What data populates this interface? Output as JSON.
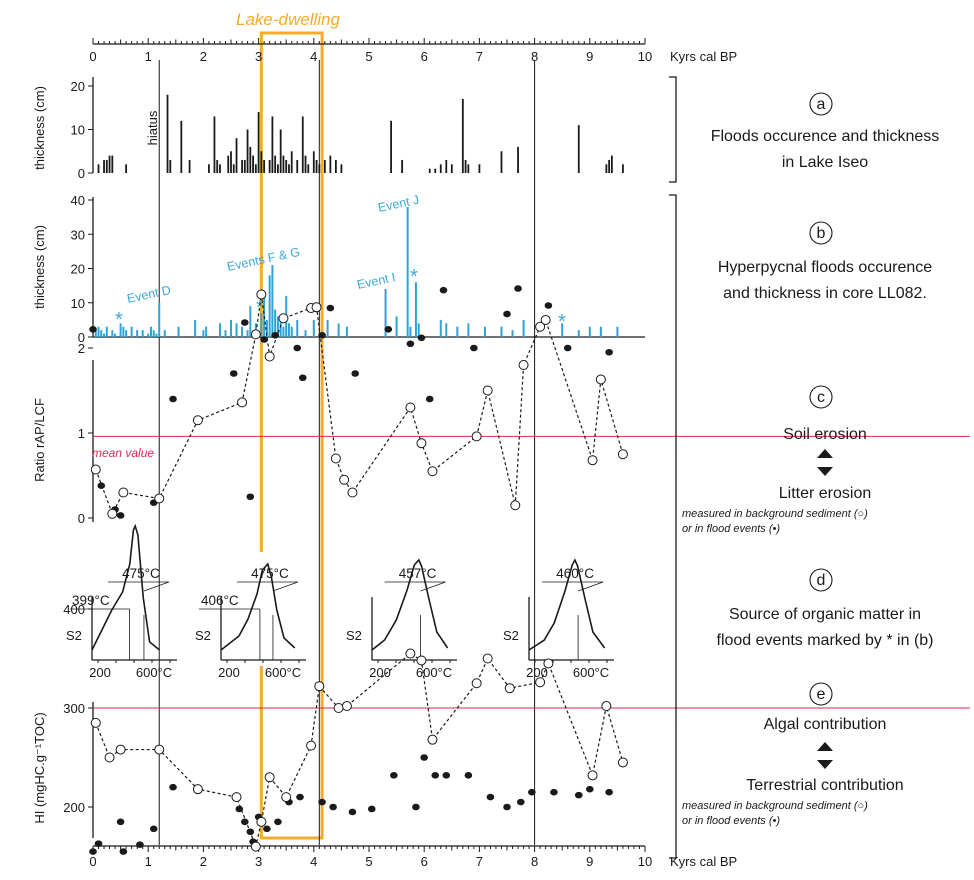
{
  "figure": {
    "lake_dwelling_label": "Lake-dwelling",
    "time_axis_unit": "Kyrs cal BP",
    "time_ticks": [
      0,
      1,
      2,
      3,
      4,
      5,
      6,
      7,
      8,
      9,
      10
    ],
    "lake_dwelling_range": [
      3.05,
      4.15
    ],
    "vertical_markers": [
      1.2,
      4.1,
      8.0
    ],
    "colors": {
      "lake_dwelling": "#f5ac2d",
      "hyperpycnal_bars": "#2fa3d5",
      "mean_line": "#d8294f",
      "text": "#1a1a1a"
    }
  },
  "panels": {
    "a": {
      "letter": "a",
      "title_line1": "Floods occurence and thickness",
      "title_line2": "in Lake Iseo",
      "ylabel": "thickness (cm)",
      "hiatus_label": "hiatus",
      "yticks": [
        "0",
        "10",
        "20"
      ]
    },
    "b": {
      "letter": "b",
      "title_line1": "Hyperpycnal floods occurence",
      "title_line2": "and thickness in core LL082.",
      "ylabel": "thickness (cm)",
      "yticks": [
        "0",
        "10",
        "20",
        "30",
        "40"
      ],
      "event_labels": [
        "Event D",
        "Events F & G",
        "Event I",
        "Event J"
      ],
      "asterisk": "*"
    },
    "c": {
      "letter": "c",
      "ylabel": "Ratio rAP/LCF",
      "yticks": [
        "0",
        "1",
        "2"
      ],
      "mean_label": "mean value",
      "upper_label": "Soil erosion",
      "lower_label": "Litter erosion",
      "note_line1": "measured in background sediment (○)",
      "note_line2": "or in flood events (•)"
    },
    "d": {
      "letter": "d",
      "title_line1": "Source of organic matter in",
      "title_line2": "flood events marked by * in (b)",
      "ylabel": "S2",
      "xtick_low": "200",
      "xtick_high": "600°C",
      "pyrograms": [
        {
          "peak_label": "475°C",
          "shoulder_label": "399°C"
        },
        {
          "peak_label": "475°C",
          "shoulder_label": "406°C"
        },
        {
          "peak_label": "457°C",
          "shoulder_label": ""
        },
        {
          "peak_label": "460°C",
          "shoulder_label": ""
        }
      ]
    },
    "e": {
      "letter": "e",
      "ylabel": "HI (mgHC.g⁻¹TOC)",
      "yticks": [
        "200",
        "300",
        "400"
      ],
      "upper_label": "Algal contribution",
      "lower_label": "Terrestrial contribution",
      "note_line1": "measured in background sediment (○)",
      "note_line2": "or in flood events (•)"
    }
  },
  "chart_data": [
    {
      "panel": "a",
      "type": "bar",
      "xlabel": "Kyrs cal BP",
      "ylabel": "thickness (cm)",
      "xlim": [
        0,
        10
      ],
      "ylim": [
        0,
        22
      ],
      "x": [
        0.1,
        0.2,
        0.25,
        0.3,
        0.35,
        0.6,
        1.35,
        1.4,
        1.6,
        1.75,
        2.1,
        2.2,
        2.25,
        2.3,
        2.45,
        2.5,
        2.55,
        2.6,
        2.7,
        2.75,
        2.8,
        2.85,
        2.9,
        2.95,
        3.0,
        3.05,
        3.1,
        3.2,
        3.25,
        3.3,
        3.35,
        3.4,
        3.45,
        3.5,
        3.55,
        3.6,
        3.7,
        3.8,
        3.85,
        3.9,
        4.0,
        4.05,
        4.1,
        4.2,
        4.3,
        4.4,
        4.5,
        5.4,
        5.6,
        6.1,
        6.2,
        6.3,
        6.4,
        6.5,
        6.7,
        6.75,
        6.8,
        7.0,
        7.4,
        7.7,
        8.8,
        9.3,
        9.35,
        9.4,
        9.6
      ],
      "values": [
        2,
        3,
        3,
        4,
        4,
        2,
        18,
        3,
        12,
        3,
        2,
        13,
        3,
        2,
        4,
        5,
        2,
        8,
        3,
        3,
        10,
        6,
        4,
        2,
        14,
        5,
        3,
        3,
        13,
        4,
        2,
        10,
        4,
        3,
        2,
        5,
        3,
        13,
        4,
        2,
        5,
        3,
        2,
        3,
        4,
        3,
        2,
        12,
        3,
        1,
        1,
        2,
        3,
        2,
        17,
        3,
        2,
        2,
        5,
        6,
        11,
        2,
        3,
        4,
        2
      ]
    },
    {
      "panel": "b",
      "type": "bar",
      "xlabel": "Kyrs cal BP",
      "ylabel": "thickness (cm)",
      "xlim": [
        0,
        10
      ],
      "ylim": [
        0,
        40
      ],
      "x": [
        0.05,
        0.1,
        0.15,
        0.2,
        0.25,
        0.35,
        0.4,
        0.5,
        0.55,
        0.6,
        0.7,
        0.8,
        0.9,
        1.0,
        1.05,
        1.1,
        1.15,
        1.2,
        1.3,
        1.55,
        1.85,
        2.0,
        2.05,
        2.3,
        2.4,
        2.5,
        2.6,
        2.7,
        2.8,
        2.85,
        2.95,
        3.05,
        3.1,
        3.15,
        3.2,
        3.25,
        3.3,
        3.35,
        3.4,
        3.45,
        3.5,
        3.55,
        3.6,
        3.7,
        3.85,
        4.0,
        4.25,
        4.45,
        4.6,
        5.3,
        5.5,
        5.7,
        5.75,
        5.85,
        5.9,
        6.3,
        6.4,
        6.6,
        6.8,
        7.1,
        7.4,
        7.6,
        7.8,
        8.5,
        8.8,
        9.0,
        9.2,
        9.5
      ],
      "values": [
        2,
        3,
        2,
        1,
        3,
        2,
        1,
        4,
        3,
        2,
        3,
        2,
        2,
        1,
        3,
        2,
        1,
        10,
        2,
        3,
        5,
        2,
        3,
        4,
        2,
        5,
        4,
        3,
        2,
        9,
        4,
        7,
        12,
        5,
        18,
        21,
        8,
        6,
        5,
        3,
        12,
        4,
        3,
        5,
        2,
        5,
        5,
        4,
        3,
        14,
        6,
        38,
        3,
        16,
        4,
        5,
        4,
        3,
        4,
        3,
        3,
        2,
        5,
        4,
        2,
        3,
        3,
        3
      ]
    },
    {
      "panel": "c",
      "type": "scatter",
      "ylabel": "Ratio rAP/LCF",
      "xlim": [
        0,
        10
      ],
      "ylim": [
        0,
        2.6
      ],
      "mean": 0.96,
      "series": [
        {
          "name": "background",
          "marker": "open",
          "connected": true,
          "x": [
            0.05,
            0.35,
            0.55,
            1.2,
            1.9,
            2.7,
            2.95,
            3.05,
            3.2,
            3.45,
            3.95,
            4.05,
            4.4,
            4.55,
            4.7,
            5.75,
            5.95,
            6.15,
            6.95,
            7.15,
            7.65,
            7.8,
            8.1,
            8.2,
            9.05,
            9.2,
            9.6
          ],
          "y": [
            0.57,
            0.05,
            0.3,
            0.23,
            1.15,
            1.36,
            2.16,
            2.63,
            1.9,
            2.35,
            2.47,
            2.48,
            0.7,
            0.45,
            0.3,
            1.3,
            0.88,
            0.55,
            0.96,
            1.5,
            0.15,
            1.8,
            2.25,
            2.33,
            0.68,
            1.63,
            0.75
          ]
        },
        {
          "name": "flood events",
          "marker": "filled",
          "x": [
            0.0,
            0.15,
            0.4,
            0.5,
            1.1,
            1.45,
            2.55,
            2.75,
            2.85,
            3.1,
            3.3,
            3.7,
            3.8,
            4.15,
            4.3,
            4.75,
            5.35,
            5.75,
            5.95,
            6.1,
            6.35,
            6.9,
            7.5,
            7.7,
            8.25,
            8.6,
            9.35
          ],
          "y": [
            2.22,
            0.38,
            0.1,
            0.03,
            0.18,
            1.4,
            1.7,
            2.3,
            0.25,
            2.1,
            2.15,
            2.0,
            1.65,
            2.15,
            2.47,
            1.7,
            2.22,
            2.05,
            2.12,
            1.4,
            2.68,
            2.0,
            2.4,
            2.7,
            2.5,
            2.0,
            1.95
          ]
        }
      ]
    },
    {
      "panel": "d",
      "type": "line",
      "ylabel": "S2",
      "xlim": [
        200,
        650
      ],
      "series": [
        {
          "name": "475°C",
          "peak_x": 475,
          "shoulder_x": 399
        },
        {
          "name": "475°C",
          "peak_x": 475,
          "shoulder_x": 406
        },
        {
          "name": "457°C",
          "peak_x": 457
        },
        {
          "name": "460°C",
          "peak_x": 460
        }
      ]
    },
    {
      "panel": "e",
      "type": "scatter",
      "ylabel": "HI (mgHC.g⁻¹TOC)",
      "xlim": [
        0,
        10
      ],
      "ylim": [
        150,
        410
      ],
      "mean": 300,
      "series": [
        {
          "name": "background",
          "marker": "open",
          "connected": true,
          "x": [
            0.05,
            0.3,
            0.5,
            1.2,
            1.9,
            2.6,
            2.95,
            3.05,
            3.2,
            3.5,
            3.95,
            4.1,
            4.45,
            4.6,
            5.75,
            5.95,
            6.15,
            6.95,
            7.15,
            7.55,
            8.1,
            8.25,
            9.05,
            9.3,
            9.6
          ],
          "y": [
            285,
            250,
            258,
            258,
            218,
            210,
            160,
            185,
            230,
            210,
            262,
            322,
            300,
            302,
            355,
            348,
            268,
            325,
            350,
            320,
            326,
            345,
            232,
            302,
            245
          ]
        },
        {
          "name": "flood events",
          "marker": "filled",
          "x": [
            0.0,
            0.1,
            0.5,
            0.55,
            0.85,
            1.1,
            1.45,
            2.65,
            2.75,
            2.85,
            2.9,
            3.0,
            3.15,
            3.35,
            3.55,
            3.75,
            4.15,
            4.35,
            4.7,
            5.05,
            5.45,
            5.85,
            6.0,
            6.2,
            6.4,
            6.8,
            7.2,
            7.5,
            7.75,
            7.95,
            8.35,
            8.8,
            9.0,
            9.35
          ],
          "y": [
            155,
            163,
            185,
            155,
            162,
            178,
            220,
            198,
            185,
            175,
            165,
            190,
            178,
            185,
            205,
            210,
            205,
            200,
            195,
            198,
            232,
            200,
            250,
            232,
            232,
            232,
            210,
            200,
            205,
            215,
            215,
            212,
            218,
            215
          ]
        }
      ]
    }
  ]
}
